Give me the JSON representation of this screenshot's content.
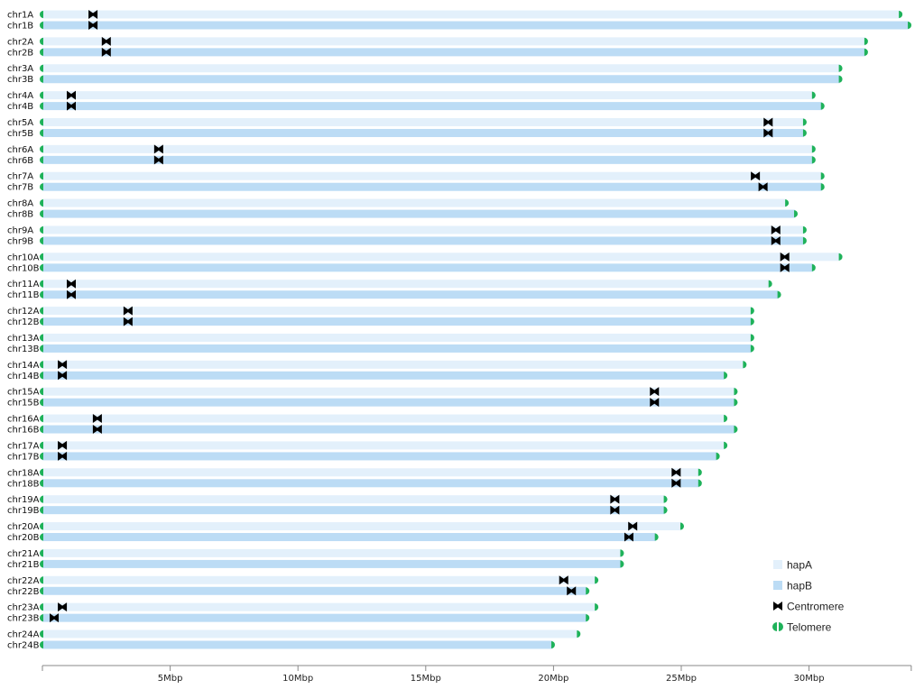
{
  "chart_data": {
    "type": "ideogram",
    "x_unit": "Mbp",
    "xlim": [
      0,
      34
    ],
    "x_ticks": [
      "5Mbp",
      "10Mbp",
      "15Mbp",
      "20Mbp",
      "25Mbp",
      "30Mbp"
    ],
    "x_tick_values": [
      5,
      10,
      15,
      20,
      25,
      30
    ],
    "colors": {
      "hapA": "#e3f0fb",
      "hapB": "#bcdcf5",
      "centromere": "#000000",
      "telomere": "#1fb25a"
    },
    "legend": {
      "placement": "bottom-right",
      "items": [
        {
          "label": "hapA",
          "icon": "square-light"
        },
        {
          "label": "hapB",
          "icon": "square-blue"
        },
        {
          "label": "Centromere",
          "icon": "bowtie"
        },
        {
          "label": "Telomere",
          "icon": "split-circle"
        }
      ]
    },
    "chromosomes": [
      {
        "name": "chr1A",
        "hap": "A",
        "length": 33.55,
        "centromere": 1.98
      },
      {
        "name": "chr1B",
        "hap": "B",
        "length": 33.9,
        "centromere": 1.98
      },
      {
        "name": "chr2A",
        "hap": "A",
        "length": 32.2,
        "centromere": 2.5
      },
      {
        "name": "chr2B",
        "hap": "B",
        "length": 32.2,
        "centromere": 2.5
      },
      {
        "name": "chr3A",
        "hap": "A",
        "length": 31.2,
        "centromere": null
      },
      {
        "name": "chr3B",
        "hap": "B",
        "length": 31.2,
        "centromere": null
      },
      {
        "name": "chr4A",
        "hap": "A",
        "length": 30.15,
        "centromere": 1.13
      },
      {
        "name": "chr4B",
        "hap": "B",
        "length": 30.5,
        "centromere": 1.13
      },
      {
        "name": "chr5A",
        "hap": "A",
        "length": 29.8,
        "centromere": 28.4
      },
      {
        "name": "chr5B",
        "hap": "B",
        "length": 29.8,
        "centromere": 28.4
      },
      {
        "name": "chr6A",
        "hap": "A",
        "length": 30.15,
        "centromere": 4.55
      },
      {
        "name": "chr6B",
        "hap": "B",
        "length": 30.15,
        "centromere": 4.55
      },
      {
        "name": "chr7A",
        "hap": "A",
        "length": 30.5,
        "centromere": 27.9
      },
      {
        "name": "chr7B",
        "hap": "B",
        "length": 30.5,
        "centromere": 28.2
      },
      {
        "name": "chr8A",
        "hap": "A",
        "length": 29.1,
        "centromere": null
      },
      {
        "name": "chr8B",
        "hap": "B",
        "length": 29.45,
        "centromere": null
      },
      {
        "name": "chr9A",
        "hap": "A",
        "length": 29.8,
        "centromere": 28.7
      },
      {
        "name": "chr9B",
        "hap": "B",
        "length": 29.8,
        "centromere": 28.7
      },
      {
        "name": "chr10A",
        "hap": "A",
        "length": 31.2,
        "centromere": 29.05
      },
      {
        "name": "chr10B",
        "hap": "B",
        "length": 30.15,
        "centromere": 29.05
      },
      {
        "name": "chr11A",
        "hap": "A",
        "length": 28.45,
        "centromere": 1.13
      },
      {
        "name": "chr11B",
        "hap": "B",
        "length": 28.8,
        "centromere": 1.13
      },
      {
        "name": "chr12A",
        "hap": "A",
        "length": 27.75,
        "centromere": 3.35
      },
      {
        "name": "chr12B",
        "hap": "B",
        "length": 27.75,
        "centromere": 3.35
      },
      {
        "name": "chr13A",
        "hap": "A",
        "length": 27.75,
        "centromere": null
      },
      {
        "name": "chr13B",
        "hap": "B",
        "length": 27.75,
        "centromere": null
      },
      {
        "name": "chr14A",
        "hap": "A",
        "length": 27.45,
        "centromere": 0.78
      },
      {
        "name": "chr14B",
        "hap": "B",
        "length": 26.7,
        "centromere": 0.78
      },
      {
        "name": "chr15A",
        "hap": "A",
        "length": 27.1,
        "centromere": 23.95
      },
      {
        "name": "chr15B",
        "hap": "B",
        "length": 27.1,
        "centromere": 23.95
      },
      {
        "name": "chr16A",
        "hap": "A",
        "length": 26.7,
        "centromere": 2.15
      },
      {
        "name": "chr16B",
        "hap": "B",
        "length": 27.1,
        "centromere": 2.15
      },
      {
        "name": "chr17A",
        "hap": "A",
        "length": 26.7,
        "centromere": 0.78
      },
      {
        "name": "chr17B",
        "hap": "B",
        "length": 26.4,
        "centromere": 0.78
      },
      {
        "name": "chr18A",
        "hap": "A",
        "length": 25.7,
        "centromere": 24.8
      },
      {
        "name": "chr18B",
        "hap": "B",
        "length": 25.7,
        "centromere": 24.8
      },
      {
        "name": "chr19A",
        "hap": "A",
        "length": 24.35,
        "centromere": 22.4
      },
      {
        "name": "chr19B",
        "hap": "B",
        "length": 24.35,
        "centromere": 22.4
      },
      {
        "name": "chr20A",
        "hap": "A",
        "length": 25.0,
        "centromere": 23.1
      },
      {
        "name": "chr20B",
        "hap": "B",
        "length": 24.0,
        "centromere": 22.95
      },
      {
        "name": "chr21A",
        "hap": "A",
        "length": 22.65,
        "centromere": null
      },
      {
        "name": "chr21B",
        "hap": "B",
        "length": 22.65,
        "centromere": null
      },
      {
        "name": "chr22A",
        "hap": "A",
        "length": 21.65,
        "centromere": 20.4
      },
      {
        "name": "chr22B",
        "hap": "B",
        "length": 21.3,
        "centromere": 20.7
      },
      {
        "name": "chr23A",
        "hap": "A",
        "length": 21.65,
        "centromere": 0.78
      },
      {
        "name": "chr23B",
        "hap": "B",
        "length": 21.3,
        "centromere": 0.46
      },
      {
        "name": "chr24A",
        "hap": "A",
        "length": 20.95,
        "centromere": null
      },
      {
        "name": "chr24B",
        "hap": "B",
        "length": 19.95,
        "centromere": null
      }
    ]
  }
}
